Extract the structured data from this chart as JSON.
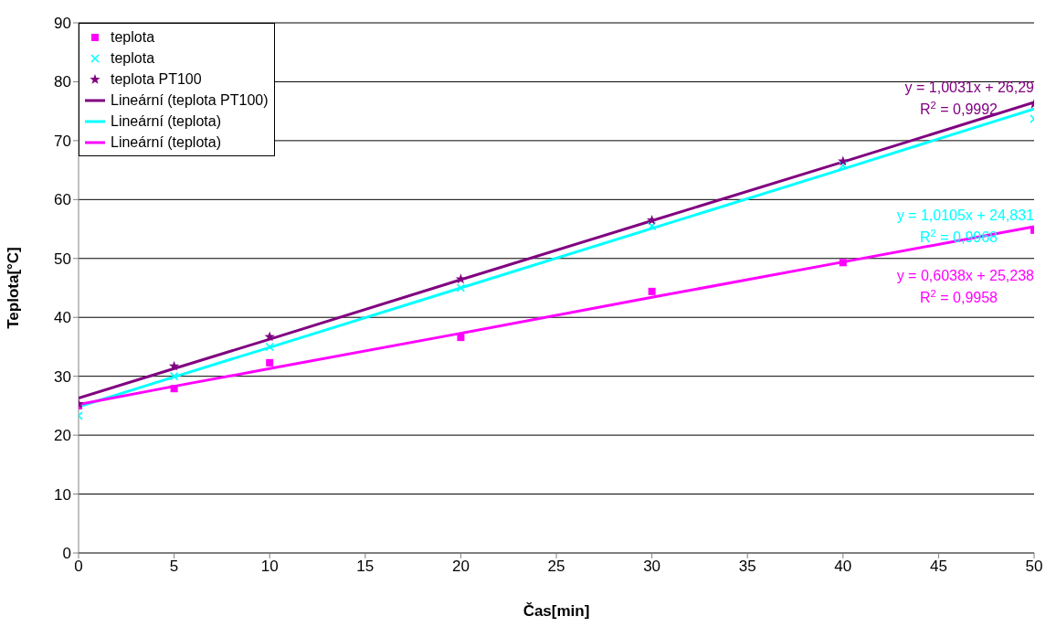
{
  "chart_data": {
    "type": "scatter",
    "xlabel": "Čas[min]",
    "ylabel": "Teplota[°C]",
    "x": [
      0,
      5,
      10,
      20,
      30,
      40,
      50
    ],
    "series": [
      {
        "name": "teplota",
        "marker": "square",
        "color": "#ff00ff",
        "values": [
          25.0,
          27.9,
          32.3,
          36.6,
          44.4,
          49.3,
          54.8
        ]
      },
      {
        "name": "teplota",
        "marker": "cross",
        "color": "#00ffff",
        "values": [
          23.3,
          30.0,
          35.0,
          45.0,
          55.5,
          65.8,
          73.7
        ]
      },
      {
        "name": "teplota PT100",
        "marker": "star",
        "color": "#800080",
        "values": [
          25.3,
          31.7,
          36.7,
          46.5,
          56.5,
          66.5,
          76.2
        ]
      },
      {
        "name": "Lineární (teplota PT100)",
        "type": "line",
        "color": "#800080",
        "values": [
          26.3,
          31.3,
          36.3,
          46.4,
          56.4,
          66.4,
          76.5
        ]
      },
      {
        "name": "Lineární (teplota)",
        "type": "line",
        "color": "#00ffff",
        "values": [
          24.8,
          29.9,
          34.9,
          45.0,
          55.1,
          65.2,
          75.4
        ]
      },
      {
        "name": "Lineární (teplota)",
        "type": "line",
        "color": "#ff00ff",
        "values": [
          25.2,
          28.3,
          31.3,
          37.3,
          43.4,
          49.4,
          55.4
        ]
      }
    ],
    "annotations": [
      "y = 1,0031x + 26,29\nR$^{2}$ = 0,9992",
      "y = 1,0105x + 24,831\nR$^{2}$ = 0,9968",
      "y = 0,6038x + 25,238\nR$^{2}$ = 0,9958"
    ],
    "xlim": [
      0,
      50
    ],
    "xticks": [
      0,
      5,
      10,
      15,
      20,
      25,
      30,
      35,
      40,
      45,
      50
    ],
    "ylim": [
      0,
      90
    ],
    "yticks": [
      0,
      10,
      20,
      30,
      40,
      50,
      60,
      70,
      80,
      90
    ],
    "grid": "y",
    "legend": "top left"
  }
}
